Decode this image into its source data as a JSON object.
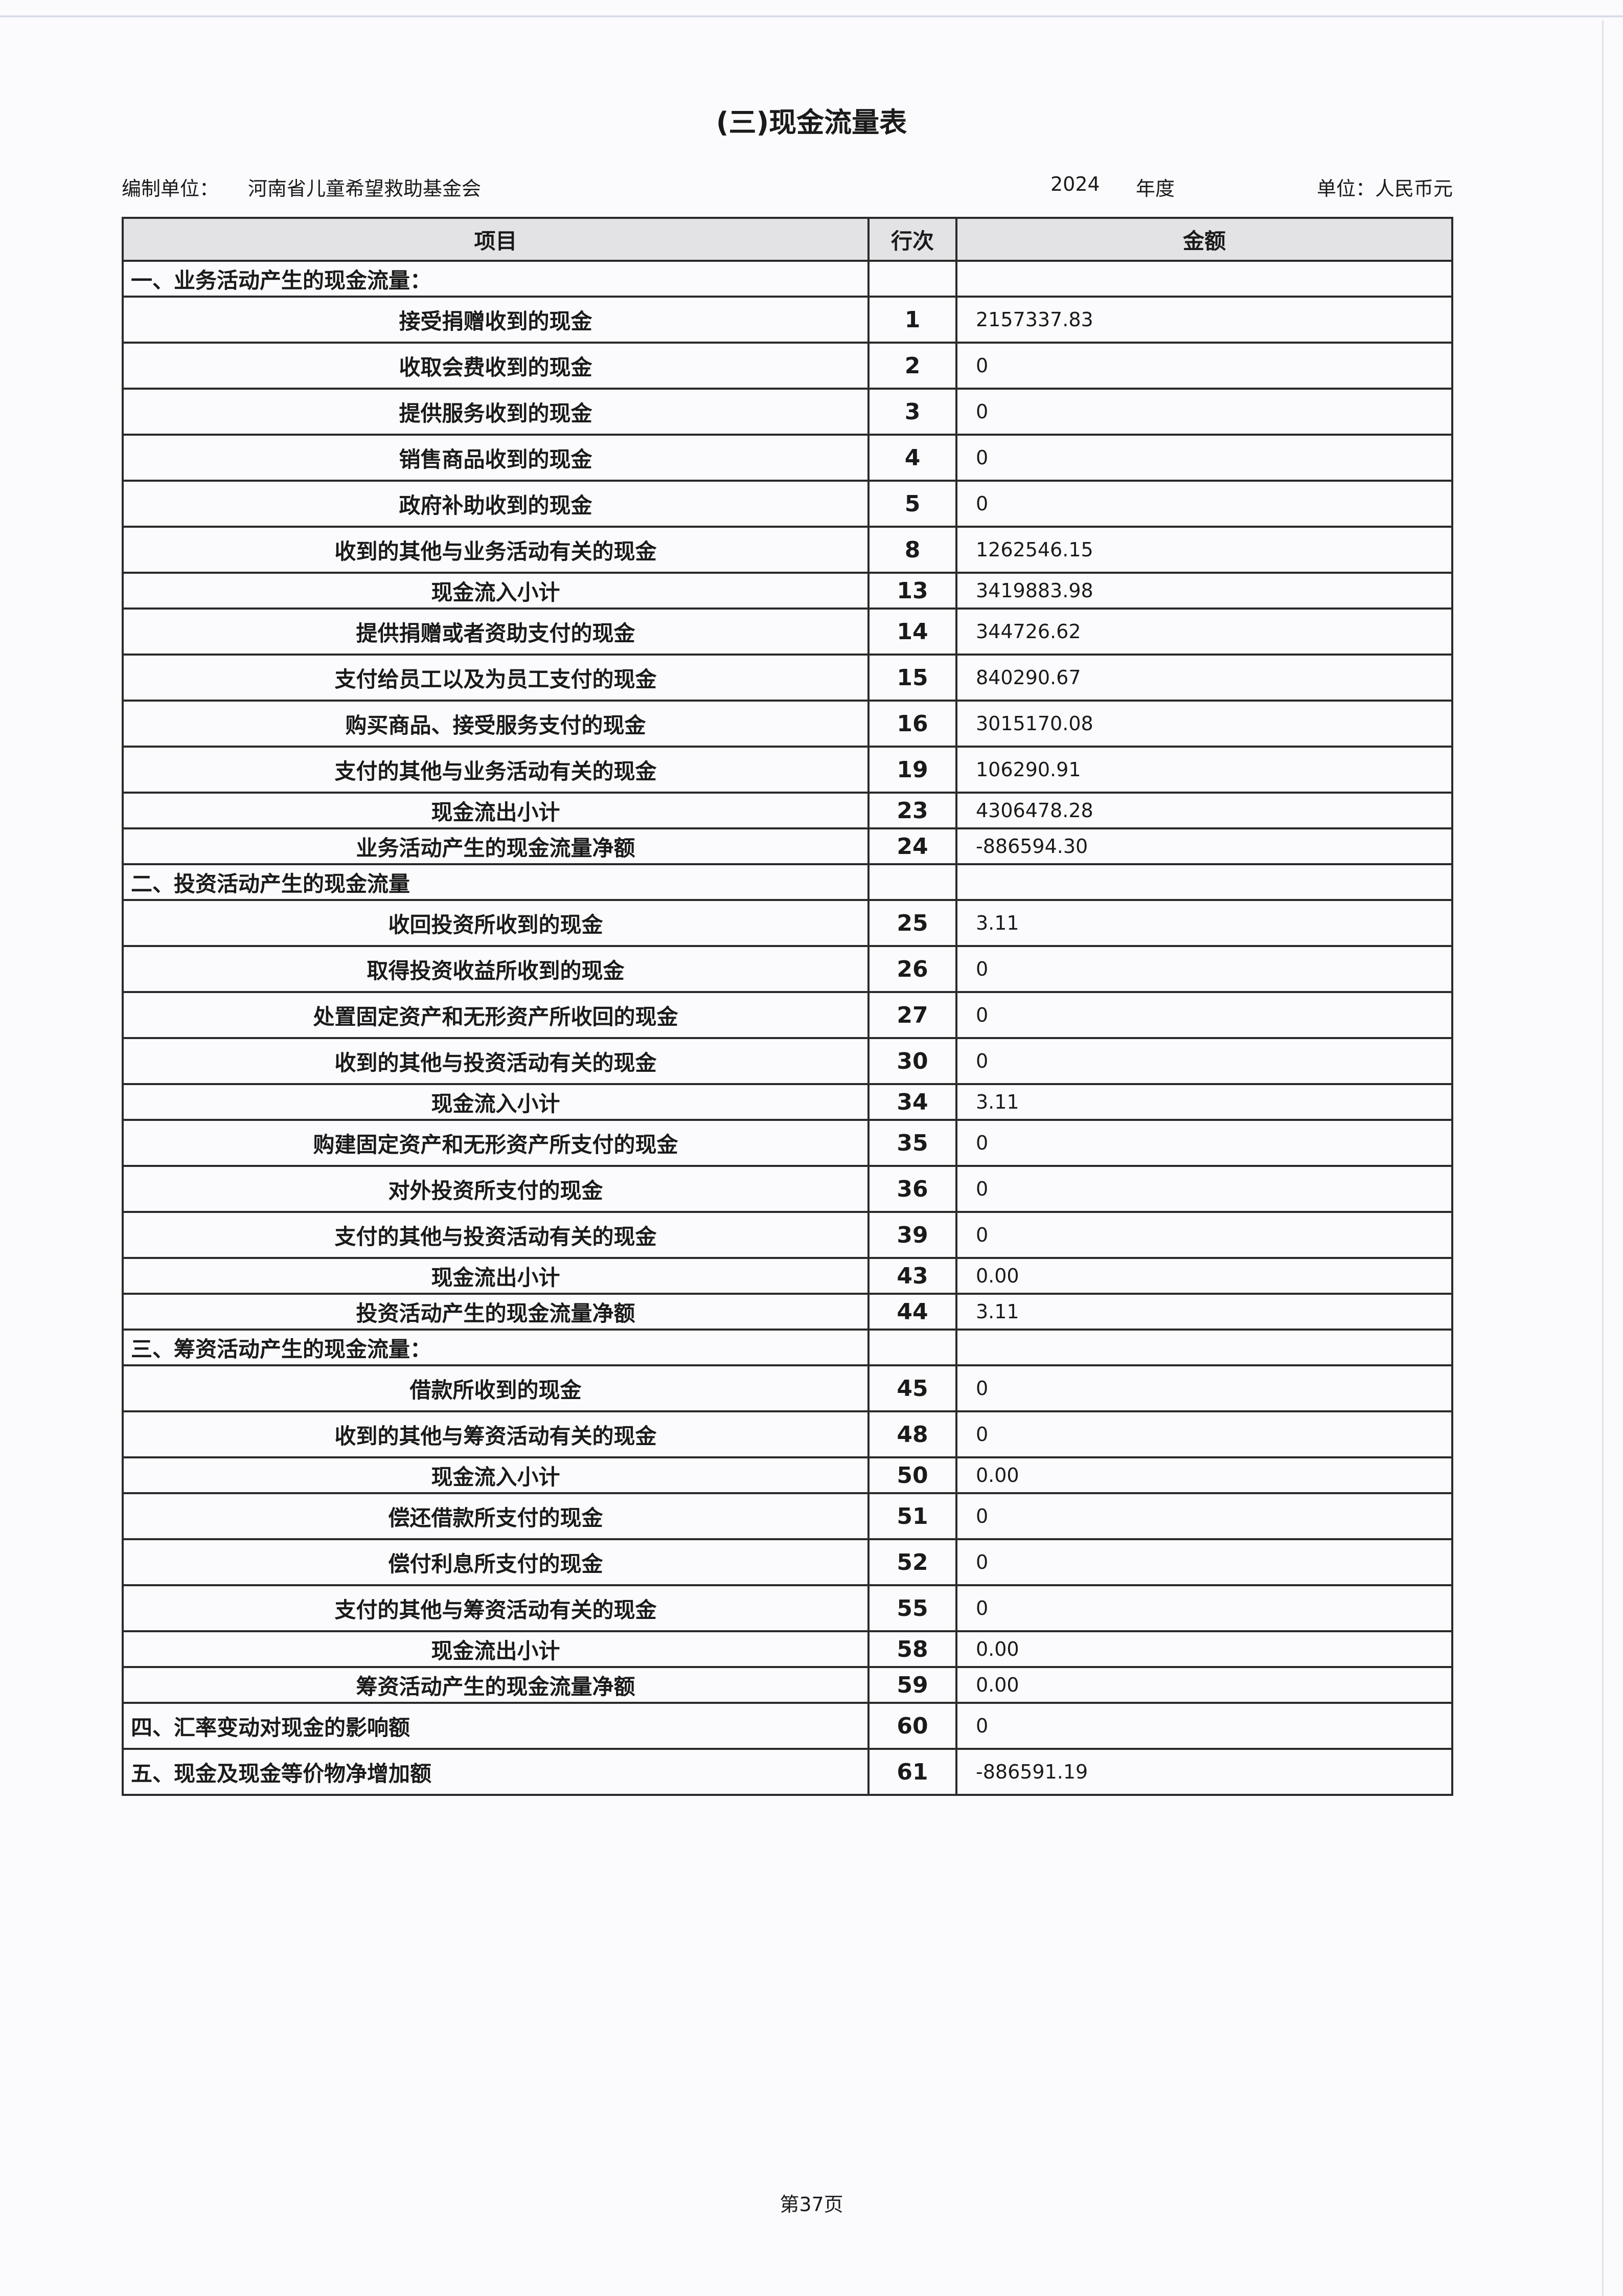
{
  "title": "(三)现金流量表",
  "meta": {
    "org_label": "编制单位：",
    "org_name": "河南省儿童希望救助基金会",
    "year": "2024",
    "year_label": "年度",
    "unit": "单位：人民币元"
  },
  "table": {
    "headers": [
      "项目",
      "行次",
      "金额"
    ],
    "rows": [
      {
        "kind": "section",
        "item": "一、业务活动产生的现金流量：",
        "line": "",
        "amount": ""
      },
      {
        "kind": "item",
        "item": "接受捐赠收到的现金",
        "line": "1",
        "amount": "2157337.83"
      },
      {
        "kind": "item",
        "item": "收取会费收到的现金",
        "line": "2",
        "amount": "0"
      },
      {
        "kind": "item",
        "item": "提供服务收到的现金",
        "line": "3",
        "amount": "0"
      },
      {
        "kind": "item",
        "item": "销售商品收到的现金",
        "line": "4",
        "amount": "0"
      },
      {
        "kind": "item",
        "item": "政府补助收到的现金",
        "line": "5",
        "amount": "0"
      },
      {
        "kind": "item",
        "item": "收到的其他与业务活动有关的现金",
        "line": "8",
        "amount": "1262546.15"
      },
      {
        "kind": "subtotal",
        "item": "现金流入小计",
        "line": "13",
        "amount": "3419883.98"
      },
      {
        "kind": "item",
        "item": "提供捐赠或者资助支付的现金",
        "line": "14",
        "amount": "344726.62"
      },
      {
        "kind": "item",
        "item": "支付给员工以及为员工支付的现金",
        "line": "15",
        "amount": "840290.67"
      },
      {
        "kind": "item",
        "item": "购买商品、接受服务支付的现金",
        "line": "16",
        "amount": "3015170.08"
      },
      {
        "kind": "item",
        "item": "支付的其他与业务活动有关的现金",
        "line": "19",
        "amount": "106290.91"
      },
      {
        "kind": "subtotal",
        "item": "现金流出小计",
        "line": "23",
        "amount": "4306478.28"
      },
      {
        "kind": "subtotal",
        "item": "业务活动产生的现金流量净额",
        "line": "24",
        "amount": "-886594.30"
      },
      {
        "kind": "section",
        "item": "二、投资活动产生的现金流量",
        "line": "",
        "amount": ""
      },
      {
        "kind": "item",
        "item": "收回投资所收到的现金",
        "line": "25",
        "amount": "3.11"
      },
      {
        "kind": "item",
        "item": "取得投资收益所收到的现金",
        "line": "26",
        "amount": "0"
      },
      {
        "kind": "item",
        "item": "处置固定资产和无形资产所收回的现金",
        "line": "27",
        "amount": "0"
      },
      {
        "kind": "item",
        "item": "收到的其他与投资活动有关的现金",
        "line": "30",
        "amount": "0"
      },
      {
        "kind": "subtotal",
        "item": "现金流入小计",
        "line": "34",
        "amount": "3.11"
      },
      {
        "kind": "item",
        "item": "购建固定资产和无形资产所支付的现金",
        "line": "35",
        "amount": "0"
      },
      {
        "kind": "item",
        "item": "对外投资所支付的现金",
        "line": "36",
        "amount": "0"
      },
      {
        "kind": "item",
        "item": "支付的其他与投资活动有关的现金",
        "line": "39",
        "amount": "0"
      },
      {
        "kind": "subtotal",
        "item": "现金流出小计",
        "line": "43",
        "amount": "0.00"
      },
      {
        "kind": "subtotal",
        "item": "投资活动产生的现金流量净额",
        "line": "44",
        "amount": "3.11"
      },
      {
        "kind": "section",
        "item": "三、筹资活动产生的现金流量：",
        "line": "",
        "amount": ""
      },
      {
        "kind": "item",
        "item": "借款所收到的现金",
        "line": "45",
        "amount": "0"
      },
      {
        "kind": "item",
        "item": "收到的其他与筹资活动有关的现金",
        "line": "48",
        "amount": "0"
      },
      {
        "kind": "subtotal",
        "item": "现金流入小计",
        "line": "50",
        "amount": "0.00"
      },
      {
        "kind": "item",
        "item": "偿还借款所支付的现金",
        "line": "51",
        "amount": "0"
      },
      {
        "kind": "item",
        "item": "偿付利息所支付的现金",
        "line": "52",
        "amount": "0"
      },
      {
        "kind": "item",
        "item": "支付的其他与筹资活动有关的现金",
        "line": "55",
        "amount": "0"
      },
      {
        "kind": "subtotal",
        "item": "现金流出小计",
        "line": "58",
        "amount": "0.00"
      },
      {
        "kind": "subtotal",
        "item": "筹资活动产生的现金流量净额",
        "line": "59",
        "amount": "0.00"
      },
      {
        "kind": "total",
        "item": "四、汇率变动对现金的影响额",
        "line": "60",
        "amount": "0"
      },
      {
        "kind": "total",
        "item": "五、现金及现金等价物净增加额",
        "line": "61",
        "amount": "-886591.19"
      }
    ]
  },
  "footer": {
    "page": "第37页"
  }
}
